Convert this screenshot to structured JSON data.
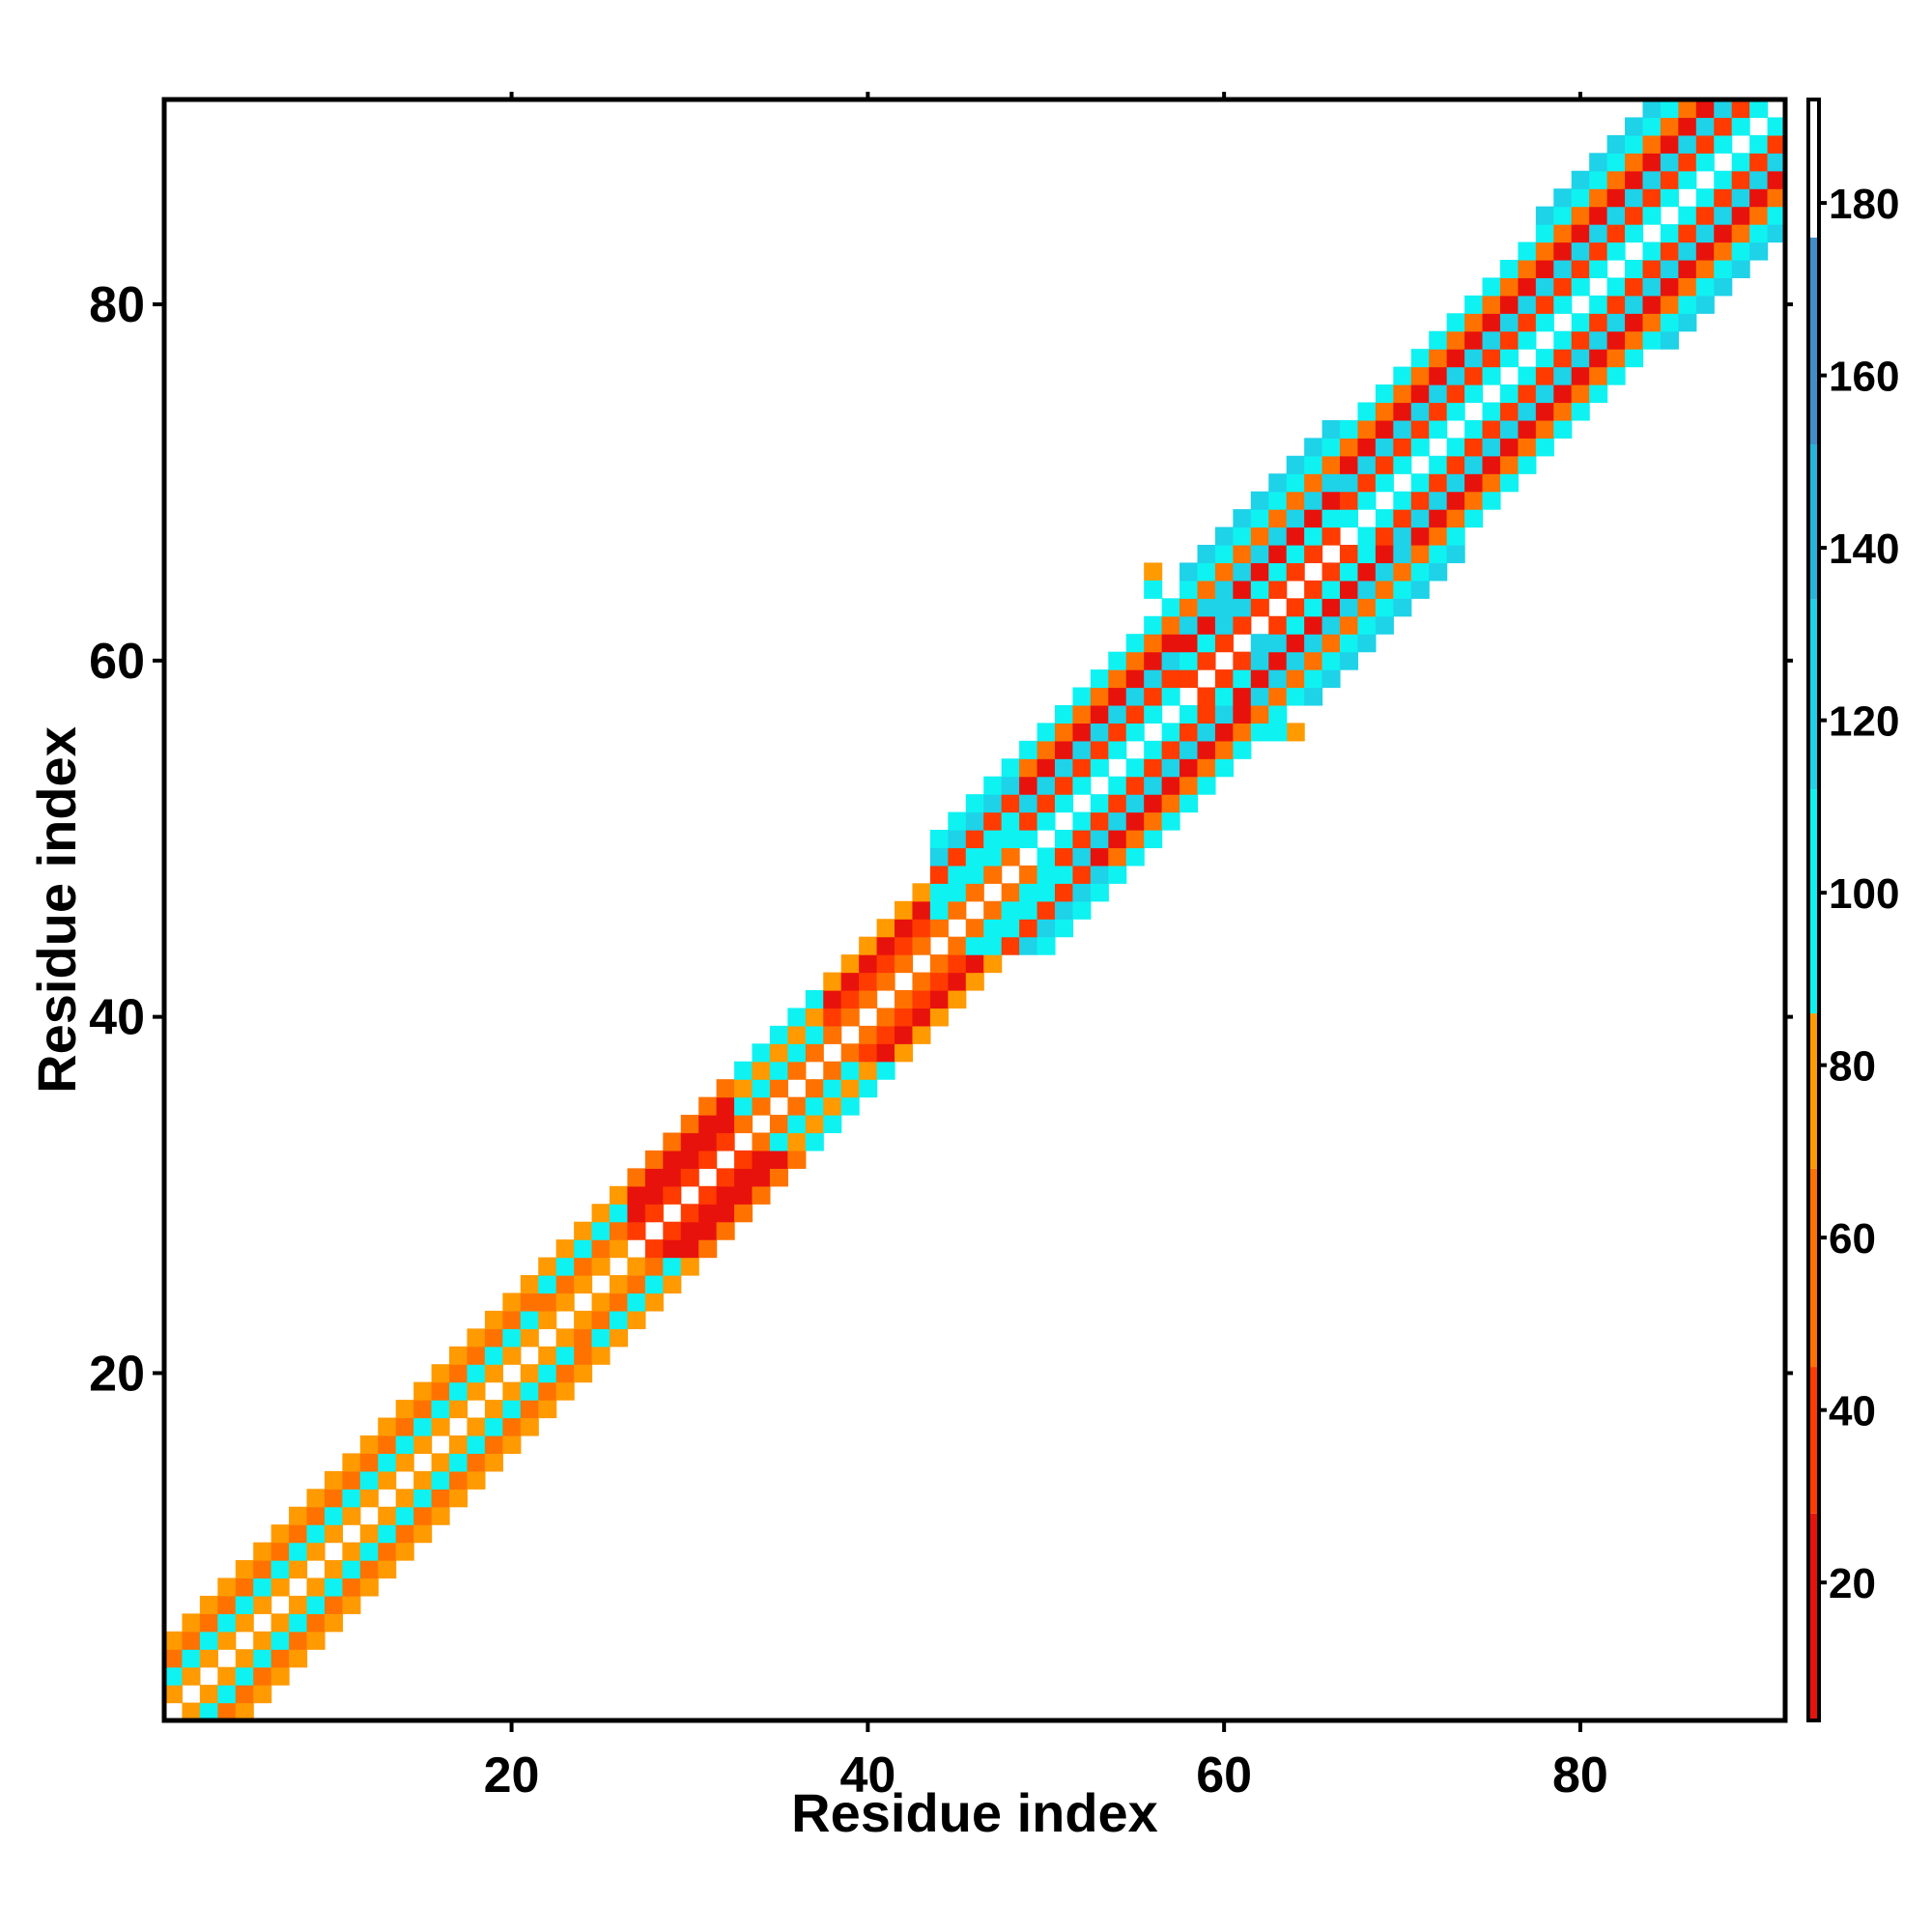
{
  "chart_data": {
    "type": "heatmap",
    "title": "",
    "xlabel": "Residue index",
    "ylabel": "Residue index",
    "xlim": [
      0.5,
      91.5
    ],
    "ylim": [
      0.5,
      91.5
    ],
    "xticks": [
      20,
      40,
      60,
      80
    ],
    "yticks": [
      20,
      40,
      60,
      80
    ],
    "colorbar": {
      "range": [
        4,
        192
      ],
      "ticks": [
        20,
        40,
        60,
        80,
        100,
        120,
        140,
        160,
        180
      ],
      "colors": [
        {
          "from": 4,
          "to": 28,
          "color": "#e8120c"
        },
        {
          "from": 28,
          "to": 45,
          "color": "#ff3b00"
        },
        {
          "from": 45,
          "to": 68,
          "color": "#ff7200"
        },
        {
          "from": 68,
          "to": 86,
          "color": "#ff9a00"
        },
        {
          "from": 86,
          "to": 112,
          "color": "#0ff2f2"
        },
        {
          "from": 112,
          "to": 134,
          "color": "#1ed2e8"
        },
        {
          "from": 134,
          "to": 152,
          "color": "#27b4dc"
        },
        {
          "from": 152,
          "to": 176,
          "color": "#3f8ec8"
        },
        {
          "from": 176,
          "to": 192,
          "color": "#ffffff"
        }
      ]
    },
    "band_segments": [
      {
        "from": 1,
        "to": 21,
        "offsets": [
          [
            1,
            68
          ],
          [
            2,
            98
          ],
          [
            3,
            55
          ],
          [
            4,
            72
          ]
        ]
      },
      {
        "from": 22,
        "to": 26,
        "offsets": [
          [
            1,
            72
          ],
          [
            2,
            58
          ],
          [
            3,
            96
          ],
          [
            4,
            78
          ]
        ]
      },
      {
        "from": 27,
        "to": 32,
        "offsets": [
          [
            1,
            34
          ],
          [
            2,
            22
          ],
          [
            3,
            14
          ],
          [
            4,
            46
          ]
        ]
      },
      {
        "from": 33,
        "to": 37,
        "offsets": [
          [
            1,
            60
          ],
          [
            2,
            96
          ],
          [
            3,
            76
          ],
          [
            4,
            100
          ]
        ]
      },
      {
        "from": 38,
        "to": 43,
        "offsets": [
          [
            1,
            60
          ],
          [
            2,
            38
          ],
          [
            3,
            22
          ],
          [
            4,
            74
          ]
        ]
      },
      {
        "from": 44,
        "to": 48,
        "offsets": [
          [
            1,
            56
          ],
          [
            2,
            98
          ],
          [
            3,
            110
          ],
          [
            4,
            40
          ],
          [
            5,
            120
          ],
          [
            6,
            105
          ]
        ]
      },
      {
        "from": 49,
        "to": 57,
        "offsets": [
          [
            1,
            98
          ],
          [
            2,
            40
          ],
          [
            3,
            115
          ],
          [
            4,
            22
          ],
          [
            5,
            62
          ],
          [
            6,
            100
          ]
        ]
      },
      {
        "from": 58,
        "to": 66,
        "offsets": [
          [
            1,
            42
          ],
          [
            2,
            100
          ],
          [
            3,
            18
          ],
          [
            4,
            115
          ],
          [
            5,
            62
          ],
          [
            6,
            98
          ],
          [
            7,
            120
          ]
        ]
      },
      {
        "from": 67,
        "to": 77,
        "offsets": [
          [
            1,
            98
          ],
          [
            2,
            40
          ],
          [
            3,
            118
          ],
          [
            4,
            20
          ],
          [
            5,
            60
          ],
          [
            6,
            100
          ]
        ]
      },
      {
        "from": 78,
        "to": 91,
        "offsets": [
          [
            1,
            98
          ],
          [
            2,
            38
          ],
          [
            3,
            120
          ],
          [
            4,
            18
          ],
          [
            5,
            62
          ],
          [
            6,
            100
          ],
          [
            7,
            124
          ]
        ]
      }
    ],
    "extra_cells": [
      {
        "x": 56,
        "y": 65,
        "value": 72
      },
      {
        "x": 56,
        "y": 64,
        "value": 110
      },
      {
        "x": 60,
        "y": 63,
        "value": 118
      },
      {
        "x": 61,
        "y": 63,
        "value": 118
      },
      {
        "x": 60,
        "y": 62,
        "value": 118
      },
      {
        "x": 64,
        "y": 56,
        "value": 72
      },
      {
        "x": 63,
        "y": 56,
        "value": 110
      },
      {
        "x": 63,
        "y": 61,
        "value": 118
      },
      {
        "x": 62,
        "y": 61,
        "value": 118
      },
      {
        "x": 62,
        "y": 60,
        "value": 118
      }
    ]
  }
}
